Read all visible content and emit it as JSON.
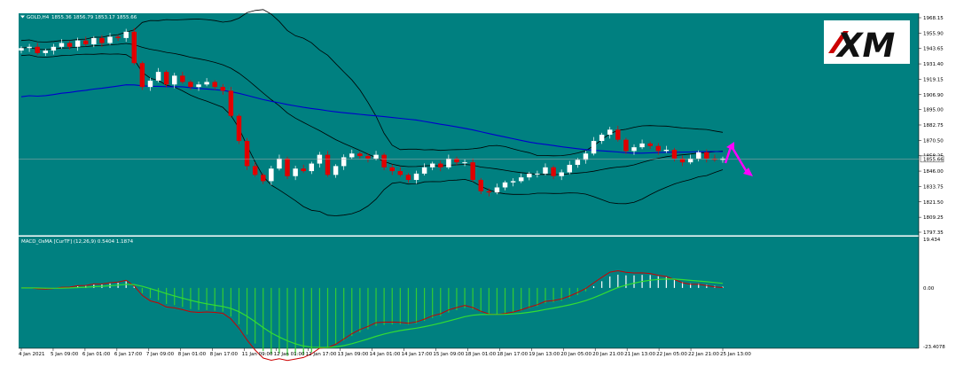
{
  "header": {
    "symbol": "GOLD,H4",
    "ohlc": "1855.36 1856.79 1853.17 1855.66"
  },
  "macd_header": "MACD_OsMA [CurTF] (12,26,9) 0.5404 1.1874",
  "logo_text": "XM",
  "current_price_label": "1855.66",
  "colors": {
    "background": "#008080",
    "bull_candle": "#ffffff",
    "bear_candle": "#e00000",
    "bollinger": "#000000",
    "ma": "#0000cc",
    "macd_line": "#cc0000",
    "signal_line": "#33dd33",
    "hist_positive": "#ffffff",
    "hist_negative": "#33cc33",
    "arrows": "#ff00ff",
    "logo_red": "#cc0000"
  },
  "chart_data": [
    {
      "type": "candlestick",
      "title": "GOLD,H4",
      "ylim": [
        1797.35,
        1968.15
      ],
      "yticks": [
        "1968.15",
        "1955.90",
        "1943.65",
        "1931.40",
        "1919.15",
        "1906.90",
        "1895.00",
        "1882.75",
        "1870.50",
        "1858.25",
        "1846.00",
        "1833.75",
        "1821.50",
        "1809.25",
        "1797.35"
      ],
      "xticks": [
        "4 Jan 2021",
        "5 Jan 09:00",
        "6 Jan 01:00",
        "6 Jan 17:00",
        "7 Jan 09:00",
        "8 Jan 01:00",
        "8 Jan 17:00",
        "11 Jan 09:00",
        "12 Jan 01:00",
        "12 Jan 17:00",
        "13 Jan 09:00",
        "14 Jan 01:00",
        "14 Jan 17:00",
        "15 Jan 09:00",
        "18 Jan 01:00",
        "18 Jan 17:00",
        "19 Jan 13:00",
        "20 Jan 05:00",
        "20 Jan 21:00",
        "21 Jan 13:00",
        "22 Jan 05:00",
        "22 Jan 21:00",
        "25 Jan 13:00"
      ],
      "close": [
        1944,
        1945,
        1940,
        1942,
        1945,
        1948,
        1945,
        1950,
        1947,
        1952,
        1948,
        1953,
        1952,
        1957,
        1932,
        1913,
        1918,
        1925,
        1915,
        1922,
        1917,
        1913,
        1915,
        1917,
        1913,
        1910,
        1890,
        1870,
        1850,
        1843,
        1838,
        1848,
        1856,
        1842,
        1848,
        1846,
        1852,
        1859,
        1843,
        1850,
        1857,
        1860,
        1858,
        1856,
        1859,
        1849,
        1846,
        1843,
        1839,
        1844,
        1849,
        1852,
        1849,
        1856,
        1853,
        1853,
        1839,
        1830,
        1829,
        1833,
        1837,
        1838,
        1841,
        1844,
        1844,
        1849,
        1842,
        1845,
        1851,
        1855,
        1860,
        1870,
        1875,
        1879,
        1871,
        1862,
        1865,
        1868,
        1866,
        1862,
        1863,
        1856,
        1853,
        1856,
        1861,
        1856,
        1855,
        1856
      ],
      "ma_label": "MA",
      "bollinger_label": "Bollinger Bands"
    },
    {
      "type": "macd",
      "title": "MACD_OsMA [CurTF] (12,26,9) 0.5404 1.1874",
      "ylim": [
        -23.4078,
        19.434
      ],
      "yticks": [
        "19.434",
        "0.00",
        "-23.4078"
      ]
    }
  ]
}
